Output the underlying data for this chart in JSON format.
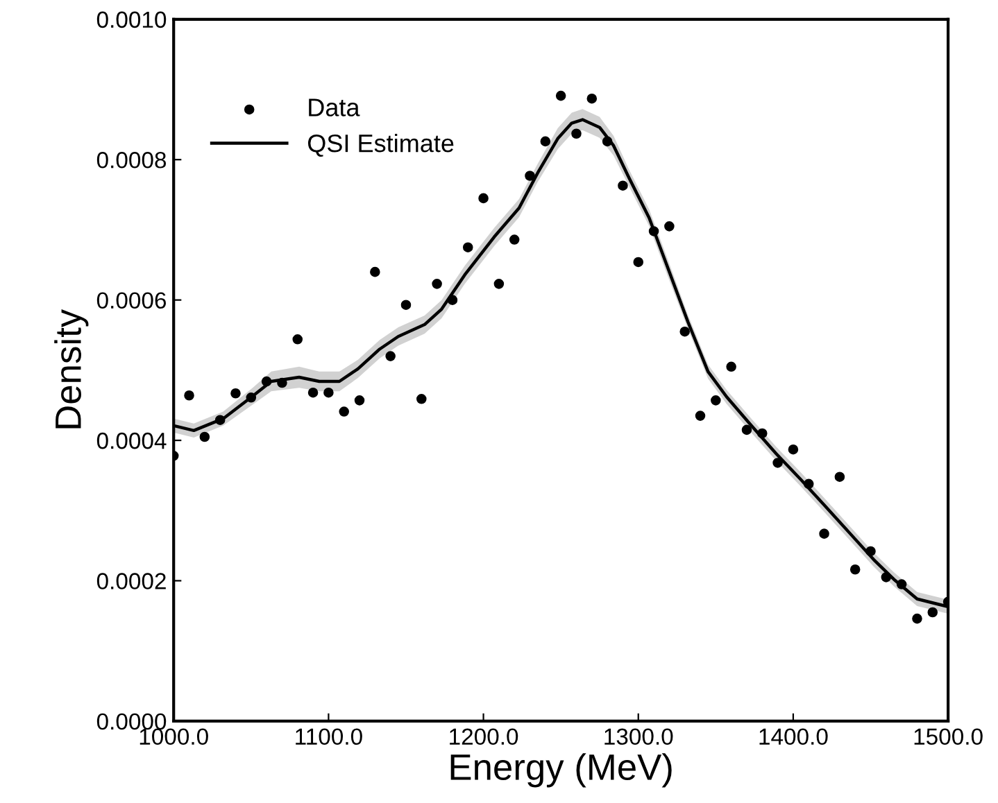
{
  "chart_data": {
    "type": "scatter",
    "xlabel": "Energy (MeV)",
    "ylabel": "Density",
    "xlim": [
      1000,
      1500
    ],
    "ylim": [
      0,
      0.001
    ],
    "xticks": [
      {
        "value": 1000,
        "label": "1000.0"
      },
      {
        "value": 1100,
        "label": "1100.0"
      },
      {
        "value": 1200,
        "label": "1200.0"
      },
      {
        "value": 1300,
        "label": "1300.0"
      },
      {
        "value": 1400,
        "label": "1400.0"
      },
      {
        "value": 1500,
        "label": "1500.0"
      }
    ],
    "yticks": [
      {
        "value": 0,
        "label": "0.0000"
      },
      {
        "value": 0.0002,
        "label": "0.0002"
      },
      {
        "value": 0.0004,
        "label": "0.0004"
      },
      {
        "value": 0.0006,
        "label": "0.0006"
      },
      {
        "value": 0.0008,
        "label": "0.0008"
      },
      {
        "value": 0.001,
        "label": "0.0010"
      }
    ],
    "grid": false,
    "legend": "top left",
    "series": [
      {
        "name": "Data",
        "color": "#000000",
        "marker": "circle",
        "x": [
          1000,
          1010,
          1020,
          1030,
          1040,
          1050,
          1060,
          1070,
          1080,
          1090,
          1100,
          1110,
          1120,
          1130,
          1140,
          1150,
          1160,
          1170,
          1180,
          1190,
          1200,
          1210,
          1220,
          1230,
          1240,
          1250,
          1260,
          1270,
          1280,
          1290,
          1300,
          1310,
          1320,
          1330,
          1340,
          1350,
          1360,
          1370,
          1380,
          1390,
          1400,
          1410,
          1420,
          1430,
          1440,
          1450,
          1460,
          1470,
          1480,
          1490,
          1500
        ],
        "values": [
          0.000378,
          0.000464,
          0.000405,
          0.000429,
          0.000467,
          0.000461,
          0.000484,
          0.000482,
          0.000544,
          0.000468,
          0.000468,
          0.000441,
          0.000457,
          0.00064,
          0.00052,
          0.000593,
          0.000459,
          0.000623,
          0.0006,
          0.000675,
          0.000745,
          0.000623,
          0.000686,
          0.000777,
          0.000826,
          0.000891,
          0.000837,
          0.000887,
          0.000826,
          0.000763,
          0.000654,
          0.000698,
          0.000705,
          0.000555,
          0.000435,
          0.000457,
          0.000505,
          0.000415,
          0.00041,
          0.000368,
          0.000387,
          0.000338,
          0.000267,
          0.000348,
          0.000216,
          0.000242,
          0.000205,
          0.000195,
          0.000146,
          0.000155,
          0.00017
        ]
      },
      {
        "name": "QSI Estimate",
        "type": "line",
        "color": "#000000",
        "marker": "none",
        "line_style": "solid",
        "x": [
          1000,
          1013,
          1032,
          1051,
          1063,
          1081,
          1094,
          1107,
          1119,
          1133,
          1145,
          1162,
          1173,
          1188,
          1207,
          1223,
          1235,
          1248,
          1257,
          1264,
          1275,
          1284,
          1294,
          1307,
          1319,
          1332,
          1345,
          1357,
          1373,
          1389,
          1405,
          1420,
          1436,
          1452,
          1465,
          1480,
          1500
        ],
        "values": [
          0.000421,
          0.000414,
          0.000431,
          0.000463,
          0.000484,
          0.00049,
          0.000484,
          0.000484,
          0.000502,
          0.00053,
          0.000548,
          0.000565,
          0.000587,
          0.000636,
          0.00069,
          0.000731,
          0.000781,
          0.00083,
          0.000852,
          0.000857,
          0.000846,
          0.00082,
          0.000774,
          0.000717,
          0.000646,
          0.000569,
          0.000498,
          0.000462,
          0.000421,
          0.000381,
          0.000344,
          0.000308,
          0.000269,
          0.00023,
          0.000202,
          0.000174,
          0.000163
        ],
        "lower": [
          0.000411,
          0.000404,
          0.000421,
          0.000451,
          0.00047,
          0.000475,
          0.00047,
          0.00047,
          0.000489,
          0.000517,
          0.000535,
          0.000552,
          0.000574,
          0.000623,
          0.000677,
          0.000718,
          0.000768,
          0.000815,
          0.000837,
          0.000842,
          0.000831,
          0.000806,
          0.000762,
          0.000705,
          0.000634,
          0.000559,
          0.000488,
          0.000452,
          0.000411,
          0.000371,
          0.000334,
          0.000298,
          0.000259,
          0.00022,
          0.000192,
          0.000164,
          0.000153
        ],
        "upper": [
          0.000431,
          0.000424,
          0.000441,
          0.000475,
          0.000498,
          0.000505,
          0.000498,
          0.000498,
          0.000515,
          0.000543,
          0.000561,
          0.000578,
          0.0006,
          0.000649,
          0.000703,
          0.000744,
          0.000794,
          0.000845,
          0.000867,
          0.000872,
          0.000861,
          0.000834,
          0.000786,
          0.000729,
          0.000658,
          0.000579,
          0.000508,
          0.000472,
          0.000431,
          0.000391,
          0.000354,
          0.000318,
          0.000279,
          0.00024,
          0.000212,
          0.000184,
          0.000173
        ]
      }
    ]
  }
}
